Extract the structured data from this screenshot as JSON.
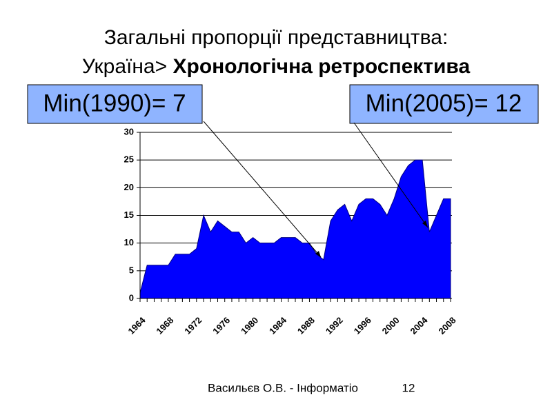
{
  "slide": {
    "title_line1": "Загальні пропорції представництва:",
    "title_line2_prefix": "Україна>",
    "title_line2_bold": "Хронологічна ретроспектива",
    "footer_author": "Васильєв О.В. - Інформатіо",
    "footer_page": "12"
  },
  "chart_data": {
    "type": "area",
    "color": "#0000ff",
    "annotations": [
      "Min(1990)= 7",
      "Min(2005)= 12"
    ],
    "categories": [
      "1964",
      null,
      null,
      null,
      "1968",
      null,
      null,
      null,
      "1972",
      null,
      null,
      null,
      "1976",
      null,
      null,
      null,
      "1980",
      null,
      null,
      null,
      "1984",
      null,
      null,
      null,
      "1988",
      null,
      null,
      null,
      "1992",
      null,
      null,
      null,
      "1996",
      null,
      null,
      null,
      "2000",
      null,
      null,
      null,
      "2004",
      null,
      null,
      null,
      "2008"
    ],
    "values": [
      1,
      6,
      6,
      6,
      6,
      8,
      8,
      8,
      9,
      15,
      12,
      14,
      13,
      12,
      12,
      10,
      11,
      10,
      10,
      10,
      11,
      11,
      11,
      10,
      10,
      8,
      7,
      14,
      16,
      17,
      14,
      17,
      18,
      18,
      17,
      15,
      18,
      22,
      24,
      25,
      25,
      12,
      15,
      18,
      18
    ],
    "ylim": [
      0,
      30
    ],
    "yticks": [
      0,
      5,
      10,
      15,
      20,
      25,
      30
    ],
    "grid": true
  }
}
